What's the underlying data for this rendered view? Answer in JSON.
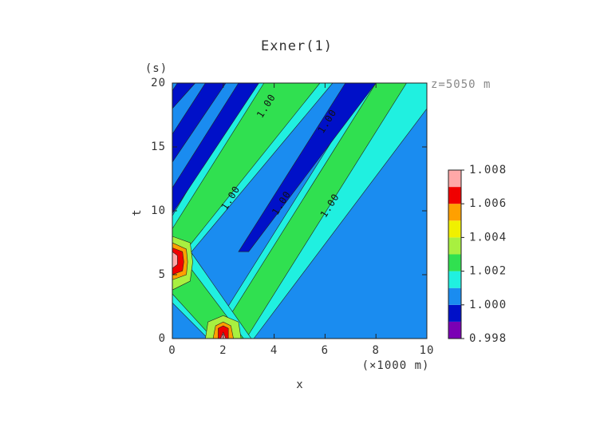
{
  "chart_data": {
    "type": "contour",
    "title": "Exner(1)",
    "x_label": "x",
    "y_label": "t",
    "x_unit": "(×1000 m)",
    "y_unit": "(s)",
    "annotation": "z=5050 m",
    "xlim": [
      0,
      10
    ],
    "ylim": [
      0,
      20
    ],
    "xticks": [
      0,
      2,
      4,
      6,
      8,
      10
    ],
    "yticks": [
      0,
      5,
      10,
      15,
      20
    ],
    "background_level": 1.0,
    "levels": [
      0.998,
      0.999,
      1.0,
      1.001,
      1.002,
      1.003,
      1.004,
      1.005,
      1.006,
      1.007,
      1.008
    ],
    "level_colors": [
      "#7a00b4",
      "#0010c8",
      "#1a8cf0",
      "#20f0e0",
      "#30e050",
      "#a8f040",
      "#f0f000",
      "#ffa000",
      "#f00000",
      "#ffa8a8"
    ],
    "colorbar_ticks": [
      0.998,
      {
        "value": 1.0,
        "label": "1.000"
      },
      1.002,
      1.004,
      1.006,
      1.008
    ],
    "regions": [
      {
        "level": 1.001,
        "points": [
          [
            1.4,
            0
          ],
          [
            3.2,
            0
          ],
          [
            10,
            18
          ],
          [
            10,
            20
          ],
          [
            7.7,
            20
          ]
        ]
      },
      {
        "level": 1.002,
        "points": [
          [
            1.7,
            0
          ],
          [
            2.9,
            0
          ],
          [
            9.2,
            20
          ],
          [
            8.0,
            20
          ]
        ]
      },
      {
        "level": 1.001,
        "points": [
          [
            0,
            2.8
          ],
          [
            1.4,
            0
          ],
          [
            3.1,
            0
          ],
          [
            0.3,
            8
          ],
          [
            0,
            8
          ]
        ]
      },
      {
        "level": 1.002,
        "points": [
          [
            0,
            3.5
          ],
          [
            1.6,
            0
          ],
          [
            2.8,
            0
          ],
          [
            0,
            7.4
          ]
        ]
      },
      {
        "level": 1.001,
        "points": [
          [
            0,
            5
          ],
          [
            0,
            9.6
          ],
          [
            3.1,
            20
          ],
          [
            6.3,
            20
          ]
        ]
      },
      {
        "level": 1.002,
        "points": [
          [
            0,
            5.6
          ],
          [
            0,
            8.6
          ],
          [
            3.6,
            20
          ],
          [
            5.8,
            20
          ]
        ]
      },
      {
        "level": 0.999,
        "points": [
          [
            2.6,
            6.8
          ],
          [
            3.0,
            6.8
          ],
          [
            8.0,
            20
          ],
          [
            6.8,
            20
          ]
        ]
      },
      {
        "level": 0.999,
        "points": [
          [
            0,
            9.8
          ],
          [
            0,
            11.8
          ],
          [
            2.6,
            20
          ],
          [
            3.4,
            20
          ]
        ]
      },
      {
        "level": 0.999,
        "points": [
          [
            0,
            13.8
          ],
          [
            0,
            16.0
          ],
          [
            1.3,
            20
          ],
          [
            2.1,
            20
          ]
        ]
      },
      {
        "level": 0.999,
        "points": [
          [
            0,
            18
          ],
          [
            0,
            19.4
          ],
          [
            0.2,
            20
          ],
          [
            0.9,
            20
          ]
        ]
      },
      {
        "level": 1.003,
        "points": [
          [
            0,
            3.8
          ],
          [
            0.7,
            4.5
          ],
          [
            0.8,
            6
          ],
          [
            0.7,
            7.5
          ],
          [
            0,
            8
          ]
        ]
      },
      {
        "level": 1.005,
        "points": [
          [
            0,
            4.6
          ],
          [
            0.55,
            5
          ],
          [
            0.6,
            6
          ],
          [
            0.55,
            7
          ],
          [
            0,
            7.5
          ]
        ]
      },
      {
        "level": 1.006,
        "points": [
          [
            0,
            5
          ],
          [
            0.4,
            5.3
          ],
          [
            0.45,
            6
          ],
          [
            0.4,
            6.8
          ],
          [
            0,
            7.1
          ]
        ]
      },
      {
        "level": 1.007,
        "points": [
          [
            0,
            5.5
          ],
          [
            0.2,
            5.8
          ],
          [
            0.2,
            6.5
          ],
          [
            0,
            6.8
          ]
        ]
      },
      {
        "level": 1.003,
        "points": [
          [
            1.3,
            0
          ],
          [
            1.4,
            1.3
          ],
          [
            2.0,
            1.8
          ],
          [
            2.6,
            1.3
          ],
          [
            2.7,
            0
          ]
        ]
      },
      {
        "level": 1.005,
        "points": [
          [
            1.6,
            0
          ],
          [
            1.7,
            1.0
          ],
          [
            2.0,
            1.3
          ],
          [
            2.3,
            1.0
          ],
          [
            2.4,
            0
          ]
        ]
      },
      {
        "level": 1.006,
        "points": [
          [
            1.8,
            0
          ],
          [
            1.8,
            0.8
          ],
          [
            2.0,
            1.0
          ],
          [
            2.2,
            0.8
          ],
          [
            2.2,
            0
          ]
        ]
      },
      {
        "level": 1.007,
        "points": [
          [
            1.9,
            0
          ],
          [
            2.0,
            0.5
          ],
          [
            2.1,
            0
          ]
        ]
      }
    ],
    "contour_labels": [
      {
        "text": "1.00",
        "x": 3.7,
        "t": 18.2
      },
      {
        "text": "1.00",
        "x": 6.1,
        "t": 17.0
      },
      {
        "text": "1.00",
        "x": 2.3,
        "t": 11.0
      },
      {
        "text": "1.00",
        "x": 4.3,
        "t": 10.6
      },
      {
        "text": "1.00",
        "x": 6.2,
        "t": 10.4
      }
    ]
  }
}
